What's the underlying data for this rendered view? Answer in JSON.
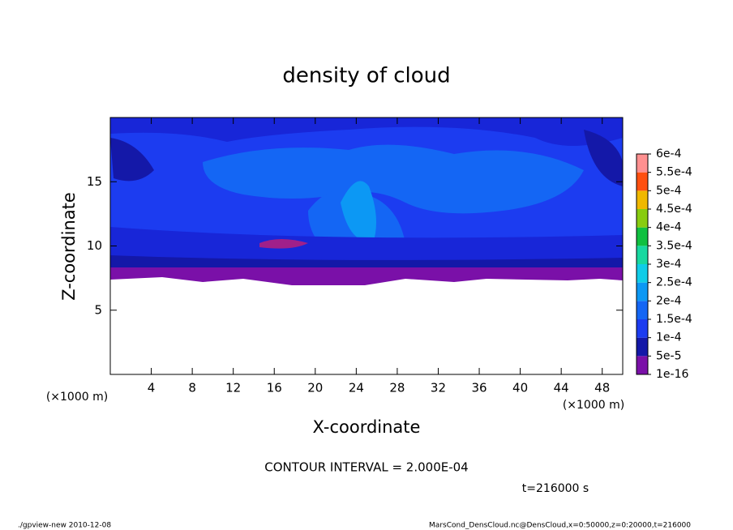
{
  "chart_data": {
    "type": "contour",
    "title": "density of cloud",
    "x_label": "X-coordinate",
    "y_label": "Z-coordinate",
    "x_unit": "(×1000 m)",
    "y_unit": "(×1000 m)",
    "xlim": [
      0,
      50
    ],
    "xticks": [
      4,
      8,
      12,
      16,
      20,
      24,
      28,
      32,
      36,
      40,
      44,
      48
    ],
    "ylim": [
      0,
      20
    ],
    "yticks": [
      5,
      10,
      15
    ],
    "levels": [
      {
        "value": 1e-16,
        "label": "1e-16"
      },
      {
        "value": 5e-05,
        "label": "5e-5"
      },
      {
        "value": 0.0001,
        "label": "1e-4"
      },
      {
        "value": 0.00015,
        "label": "1.5e-4"
      },
      {
        "value": 0.0002,
        "label": "2e-4"
      },
      {
        "value": 0.00025,
        "label": "2.5e-4"
      },
      {
        "value": 0.0003,
        "label": "3e-4"
      },
      {
        "value": 0.00035,
        "label": "3.5e-4"
      },
      {
        "value": 0.0004,
        "label": "4e-4"
      },
      {
        "value": 0.00045,
        "label": "4.5e-4"
      },
      {
        "value": 0.0005,
        "label": "5e-4"
      },
      {
        "value": 0.00055,
        "label": "5.5e-4"
      },
      {
        "value": 0.0006,
        "label": "6e-4"
      }
    ],
    "colors": [
      "#7a10a8",
      "#1418a8",
      "#1c3cf0",
      "#1466f4",
      "#0c98f4",
      "#10cce8",
      "#18d8a0",
      "#10c040",
      "#88cc10",
      "#f0b800",
      "#ff5010",
      "#ff9090"
    ],
    "contour_interval": "CONTOUR INTERVAL = 2.000E-04",
    "time": "t=216000 s",
    "footer_left": "./gpview-new  2010-12-08",
    "footer_right": "MarsCond_DensCloud.nc@DensCloud,x=0:50000,z=0:20000,t=216000"
  }
}
